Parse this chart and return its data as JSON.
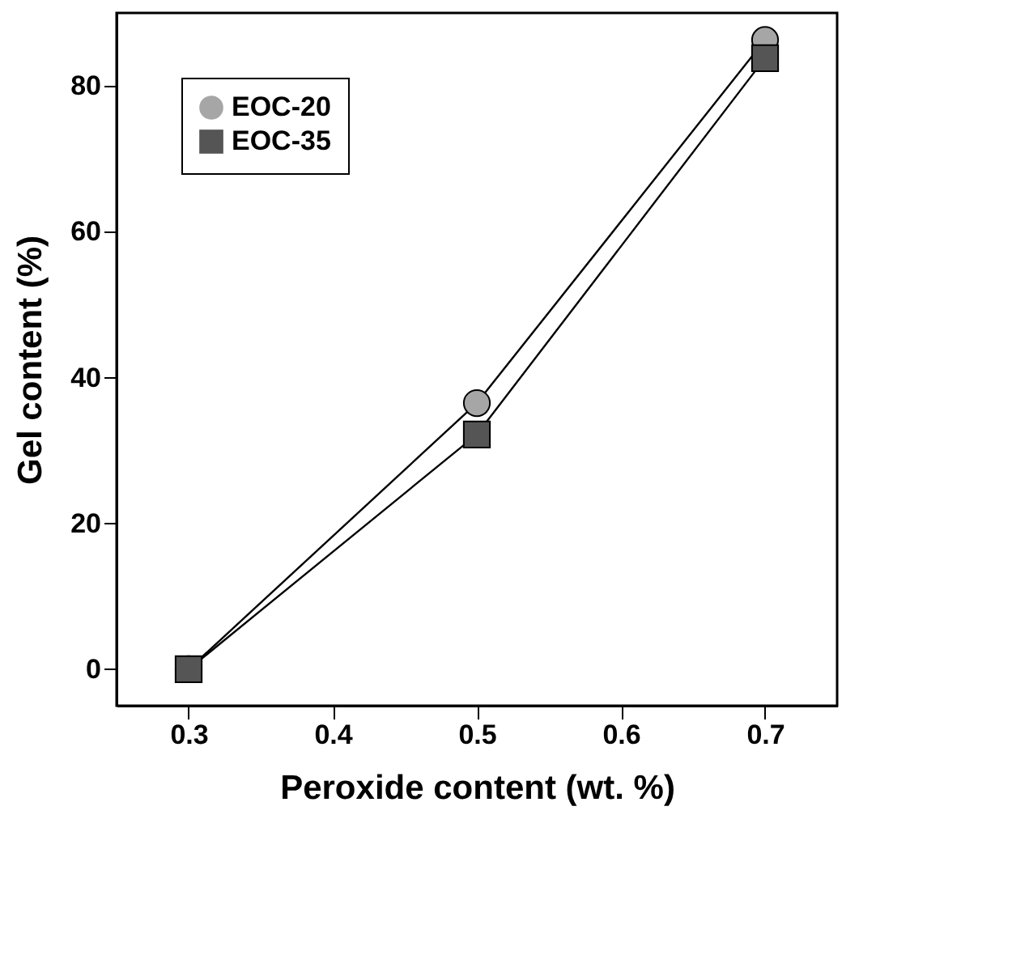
{
  "chart_data": {
    "type": "line",
    "xlabel": "Peroxide content (wt. %)",
    "ylabel": "Gel content (%)",
    "x": [
      0.3,
      0.5,
      0.7
    ],
    "series": [
      {
        "name": "EOC-20",
        "color": "#a6a6a6",
        "marker": "circle",
        "values": [
          0,
          36.5,
          86.3
        ]
      },
      {
        "name": "EOC-35",
        "color": "#555555",
        "marker": "square",
        "values": [
          0,
          32.2,
          83.8
        ]
      }
    ],
    "xlim": [
      0.25,
      0.75
    ],
    "xticks": [
      0.3,
      0.4,
      0.5,
      0.6,
      0.7
    ],
    "ylim": [
      -5,
      90
    ],
    "yticks": [
      0,
      20,
      40,
      60,
      80
    ],
    "grid": false,
    "legend": "top left"
  }
}
